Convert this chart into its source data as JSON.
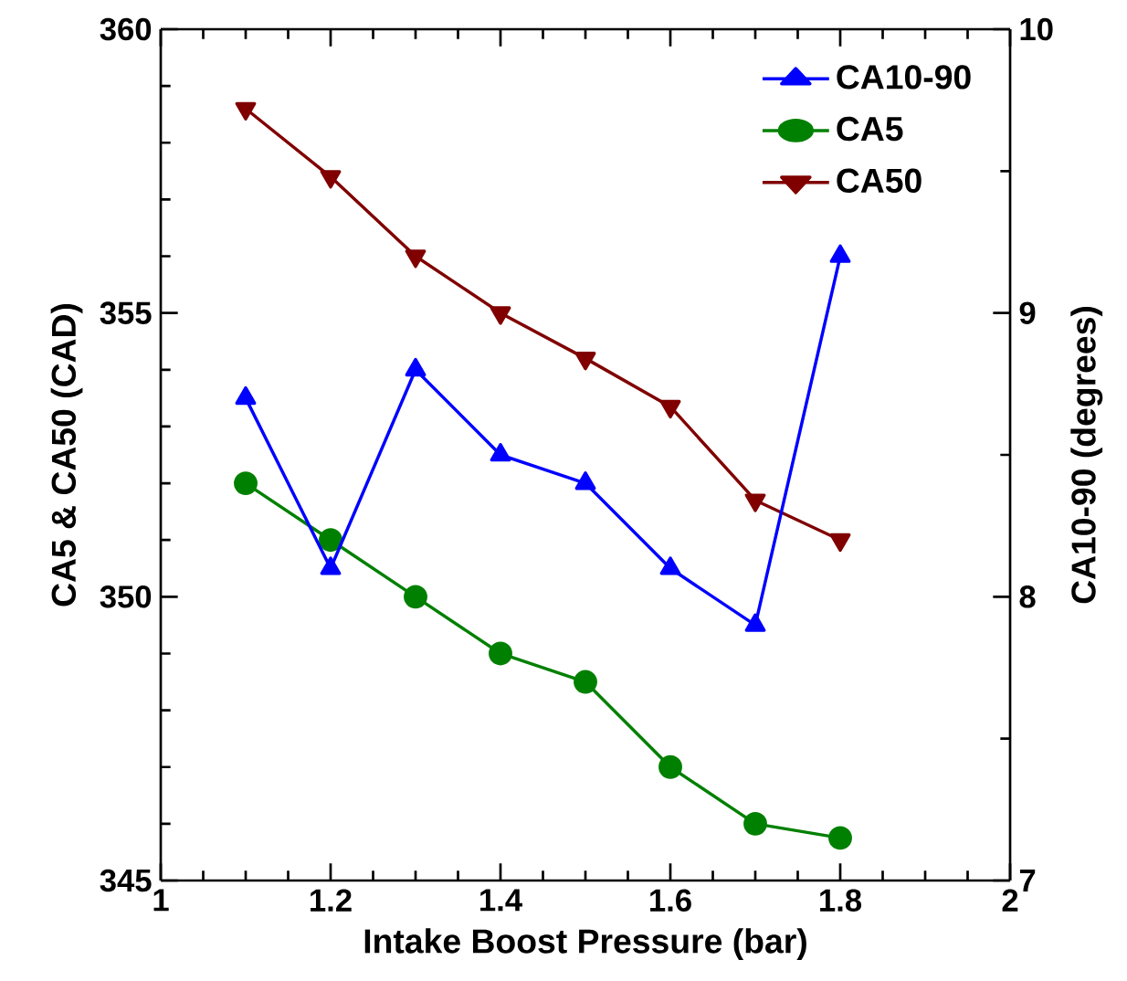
{
  "chart_data": {
    "type": "line",
    "xlabel": "Intake Boost Pressure (bar)",
    "ylabel": "CA5 & CA50 (CAD)",
    "y2label": "CA10-90 (degrees)",
    "x": [
      1.1,
      1.2,
      1.3,
      1.4,
      1.5,
      1.6,
      1.7,
      1.8
    ],
    "series": [
      {
        "name": "CA10-90",
        "color": "#0000ff",
        "marker": "triangle",
        "axis": "y2",
        "values": [
          8.7,
          8.1,
          8.8,
          8.5,
          8.4,
          8.1,
          7.9,
          9.2
        ]
      },
      {
        "name": "CA5",
        "color": "#008000",
        "marker": "circle",
        "values": [
          352,
          351,
          350,
          349,
          348.5,
          347,
          346,
          345.75
        ]
      },
      {
        "name": "CA50",
        "color": "#800000",
        "marker": "triangle down",
        "values": [
          358.6,
          357.4,
          356,
          355,
          354.2,
          353.35,
          351.7,
          351
        ]
      }
    ],
    "xlim": [
      1,
      2
    ],
    "xticks": [
      1,
      1.2,
      1.4,
      1.6,
      1.8,
      2
    ],
    "ylim": [
      345,
      360
    ],
    "yticks": [
      345,
      350,
      355,
      360
    ],
    "y2lim": [
      7,
      10
    ],
    "y2ticks": [
      7,
      8,
      9,
      10
    ],
    "grid": false,
    "legend": "top right",
    "line_style": "solid"
  }
}
